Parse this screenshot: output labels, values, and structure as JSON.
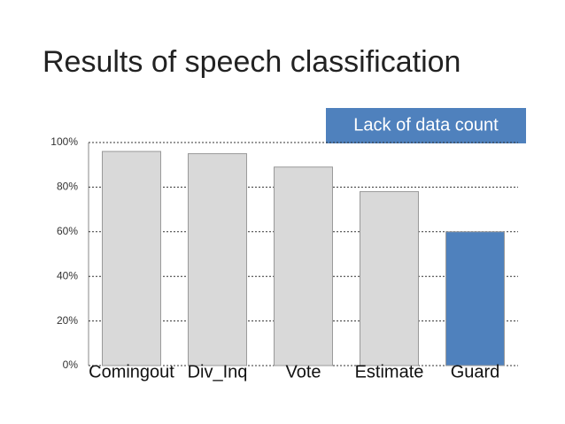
{
  "chart_data": {
    "type": "bar",
    "title": "Results of speech classification",
    "annotation": "Lack of data count",
    "categories": [
      "Comingout",
      "Div_Inq",
      "Vote",
      "Estimate",
      "Guard"
    ],
    "values": [
      96,
      95,
      89,
      78,
      60
    ],
    "colors": [
      "#d9d9d9",
      "#d9d9d9",
      "#d9d9d9",
      "#d9d9d9",
      "#4f81bd"
    ],
    "ylim": [
      0,
      100
    ],
    "yticks": [
      {
        "value": 0,
        "label": "0%"
      },
      {
        "value": 20,
        "label": "20%"
      },
      {
        "value": 40,
        "label": "40%"
      },
      {
        "value": 60,
        "label": "60%"
      },
      {
        "value": 80,
        "label": "80%"
      },
      {
        "value": 100,
        "label": "100%"
      }
    ],
    "grid": true
  }
}
